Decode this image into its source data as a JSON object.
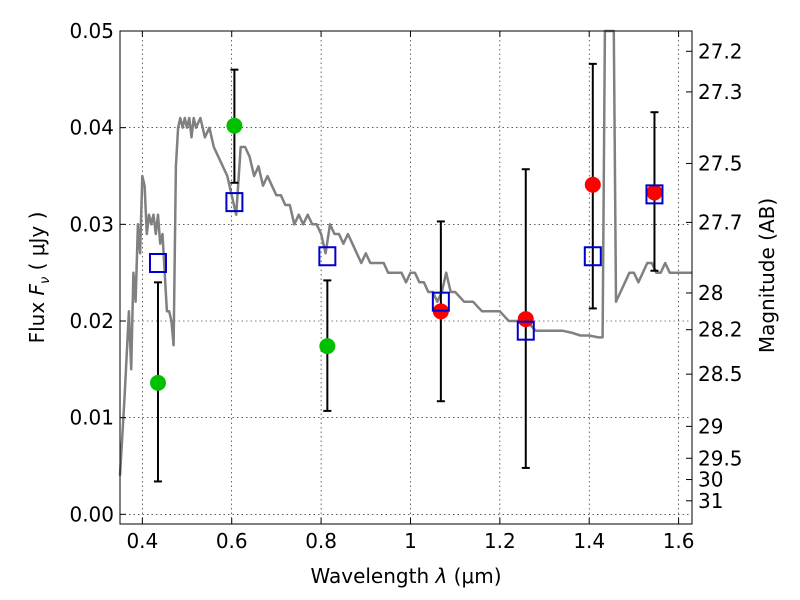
{
  "chart_data": {
    "type": "scatter",
    "xlabel_prefix": "Wavelength  ",
    "xlabel_symbol": "λ",
    "xlabel_unit": " (μm)",
    "ylabel_prefix": "Flux  ",
    "ylabel_symbol": "F",
    "ylabel_sub": "ν",
    "ylabel_unit": "  ( μJy )",
    "y2label": "Magnitude (AB)",
    "xlim": [
      0.35,
      1.63
    ],
    "ylim": [
      -0.001,
      0.05
    ],
    "grid": true,
    "x_ticks": [
      {
        "value": 0.4,
        "label": "0.4"
      },
      {
        "value": 0.6,
        "label": "0.6"
      },
      {
        "value": 0.8,
        "label": "0.8"
      },
      {
        "value": 1.0,
        "label": "1"
      },
      {
        "value": 1.2,
        "label": "1.2"
      },
      {
        "value": 1.4,
        "label": "1.4"
      },
      {
        "value": 1.6,
        "label": "1.6"
      }
    ],
    "y_ticks": [
      {
        "value": 0.0,
        "label": "0.00"
      },
      {
        "value": 0.01,
        "label": "0.01"
      },
      {
        "value": 0.02,
        "label": "0.02"
      },
      {
        "value": 0.03,
        "label": "0.03"
      },
      {
        "value": 0.04,
        "label": "0.04"
      },
      {
        "value": 0.05,
        "label": "0.05"
      }
    ],
    "mag_ticks": [
      {
        "flux": 0.0479,
        "label": "27.2"
      },
      {
        "flux": 0.0437,
        "label": "27.3"
      },
      {
        "flux": 0.0363,
        "label": "27.5"
      },
      {
        "flux": 0.0302,
        "label": "27.7"
      },
      {
        "flux": 0.0229,
        "label": "28"
      },
      {
        "flux": 0.0191,
        "label": "28.2"
      },
      {
        "flux": 0.0145,
        "label": "28.5"
      },
      {
        "flux": 0.0091,
        "label": "29"
      },
      {
        "flux": 0.0058,
        "label": "29.5"
      },
      {
        "flux": 0.0036,
        "label": "30"
      },
      {
        "flux": 0.0014,
        "label": "31"
      }
    ],
    "series": [
      {
        "kind": "line",
        "color": "#808080",
        "points": [
          [
            0.35,
            0.004
          ],
          [
            0.36,
            0.012
          ],
          [
            0.37,
            0.021
          ],
          [
            0.375,
            0.015
          ],
          [
            0.38,
            0.025
          ],
          [
            0.385,
            0.022
          ],
          [
            0.39,
            0.03
          ],
          [
            0.395,
            0.027
          ],
          [
            0.4,
            0.035
          ],
          [
            0.405,
            0.034
          ],
          [
            0.41,
            0.029
          ],
          [
            0.415,
            0.031
          ],
          [
            0.42,
            0.03
          ],
          [
            0.425,
            0.031
          ],
          [
            0.43,
            0.029
          ],
          [
            0.435,
            0.031
          ],
          [
            0.44,
            0.028
          ],
          [
            0.445,
            0.029
          ],
          [
            0.45,
            0.025
          ],
          [
            0.455,
            0.021
          ],
          [
            0.46,
            0.021
          ],
          [
            0.465,
            0.02
          ],
          [
            0.47,
            0.0175
          ],
          [
            0.475,
            0.036
          ],
          [
            0.48,
            0.04
          ],
          [
            0.485,
            0.041
          ],
          [
            0.49,
            0.04
          ],
          [
            0.495,
            0.041
          ],
          [
            0.5,
            0.04
          ],
          [
            0.505,
            0.041
          ],
          [
            0.51,
            0.039
          ],
          [
            0.515,
            0.041
          ],
          [
            0.52,
            0.04
          ],
          [
            0.53,
            0.041
          ],
          [
            0.54,
            0.039
          ],
          [
            0.55,
            0.04
          ],
          [
            0.56,
            0.038
          ],
          [
            0.57,
            0.037
          ],
          [
            0.58,
            0.036
          ],
          [
            0.59,
            0.035
          ],
          [
            0.6,
            0.033
          ],
          [
            0.61,
            0.031
          ],
          [
            0.62,
            0.038
          ],
          [
            0.63,
            0.038
          ],
          [
            0.64,
            0.037
          ],
          [
            0.65,
            0.035
          ],
          [
            0.66,
            0.036
          ],
          [
            0.67,
            0.034
          ],
          [
            0.68,
            0.035
          ],
          [
            0.69,
            0.034
          ],
          [
            0.7,
            0.033
          ],
          [
            0.71,
            0.033
          ],
          [
            0.72,
            0.032
          ],
          [
            0.73,
            0.032
          ],
          [
            0.74,
            0.03
          ],
          [
            0.75,
            0.031
          ],
          [
            0.76,
            0.03
          ],
          [
            0.77,
            0.031
          ],
          [
            0.78,
            0.03
          ],
          [
            0.79,
            0.03
          ],
          [
            0.8,
            0.029
          ],
          [
            0.81,
            0.027
          ],
          [
            0.82,
            0.03
          ],
          [
            0.83,
            0.029
          ],
          [
            0.84,
            0.029
          ],
          [
            0.85,
            0.028
          ],
          [
            0.86,
            0.029
          ],
          [
            0.87,
            0.028
          ],
          [
            0.88,
            0.027
          ],
          [
            0.89,
            0.026
          ],
          [
            0.9,
            0.027
          ],
          [
            0.91,
            0.026
          ],
          [
            0.92,
            0.026
          ],
          [
            0.93,
            0.026
          ],
          [
            0.94,
            0.026
          ],
          [
            0.95,
            0.025
          ],
          [
            0.96,
            0.025
          ],
          [
            0.97,
            0.025
          ],
          [
            0.98,
            0.025
          ],
          [
            0.99,
            0.024
          ],
          [
            1.0,
            0.025
          ],
          [
            1.01,
            0.025
          ],
          [
            1.02,
            0.024
          ],
          [
            1.03,
            0.024
          ],
          [
            1.04,
            0.023
          ],
          [
            1.05,
            0.023
          ],
          [
            1.06,
            0.022
          ],
          [
            1.07,
            0.023
          ],
          [
            1.08,
            0.025
          ],
          [
            1.09,
            0.023
          ],
          [
            1.1,
            0.023
          ],
          [
            1.12,
            0.022
          ],
          [
            1.14,
            0.022
          ],
          [
            1.16,
            0.021
          ],
          [
            1.18,
            0.021
          ],
          [
            1.2,
            0.021
          ],
          [
            1.22,
            0.02
          ],
          [
            1.24,
            0.02
          ],
          [
            1.26,
            0.02
          ],
          [
            1.28,
            0.019
          ],
          [
            1.3,
            0.019
          ],
          [
            1.32,
            0.019
          ],
          [
            1.34,
            0.019
          ],
          [
            1.36,
            0.0188
          ],
          [
            1.38,
            0.0185
          ],
          [
            1.4,
            0.0185
          ],
          [
            1.42,
            0.0183
          ],
          [
            1.43,
            0.0183
          ],
          [
            1.435,
            0.05
          ],
          [
            1.455,
            0.05
          ],
          [
            1.46,
            0.022
          ],
          [
            1.47,
            0.023
          ],
          [
            1.48,
            0.024
          ],
          [
            1.49,
            0.025
          ],
          [
            1.5,
            0.025
          ],
          [
            1.51,
            0.024
          ],
          [
            1.52,
            0.025
          ],
          [
            1.53,
            0.026
          ],
          [
            1.54,
            0.026
          ],
          [
            1.55,
            0.025
          ],
          [
            1.56,
            0.025
          ],
          [
            1.57,
            0.026
          ],
          [
            1.58,
            0.025
          ],
          [
            1.59,
            0.025
          ],
          [
            1.6,
            0.025
          ],
          [
            1.62,
            0.025
          ],
          [
            1.63,
            0.025
          ]
        ]
      },
      {
        "kind": "points",
        "marker": "circle",
        "color": "#00c000",
        "points": [
          {
            "x": 0.435,
            "y": 0.0136,
            "err_lo": 0.0034,
            "err_hi": 0.024
          },
          {
            "x": 0.606,
            "y": 0.0402,
            "err_lo": 0.0343,
            "err_hi": 0.046
          },
          {
            "x": 0.814,
            "y": 0.0174,
            "err_lo": 0.0107,
            "err_hi": 0.0242
          }
        ]
      },
      {
        "kind": "points",
        "marker": "circle",
        "color": "#ff0000",
        "points": [
          {
            "x": 1.068,
            "y": 0.021,
            "err_lo": 0.0117,
            "err_hi": 0.0303
          },
          {
            "x": 1.258,
            "y": 0.0202,
            "err_lo": 0.0048,
            "err_hi": 0.0357
          },
          {
            "x": 1.408,
            "y": 0.0341,
            "err_lo": 0.0213,
            "err_hi": 0.0466
          },
          {
            "x": 1.546,
            "y": 0.0333,
            "err_lo": 0.0252,
            "err_hi": 0.0416
          }
        ]
      },
      {
        "kind": "points",
        "marker": "square",
        "color": "#0000cc",
        "points": [
          {
            "x": 0.435,
            "y": 0.026
          },
          {
            "x": 0.606,
            "y": 0.0323
          },
          {
            "x": 0.814,
            "y": 0.0267
          },
          {
            "x": 1.068,
            "y": 0.022
          },
          {
            "x": 1.258,
            "y": 0.019
          },
          {
            "x": 1.408,
            "y": 0.0267
          },
          {
            "x": 1.546,
            "y": 0.0331
          }
        ]
      }
    ]
  }
}
